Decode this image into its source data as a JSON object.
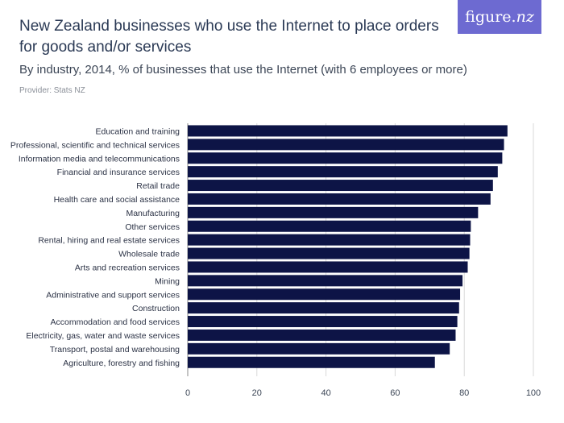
{
  "header": {
    "title": "New Zealand businesses who use the Internet to place orders for goods and/or services",
    "subtitle": "By industry, 2014, % of businesses that use the Internet (with 6 employees or more)",
    "provider": "Provider: Stats NZ",
    "logo_main": "figure.",
    "logo_suffix": "nz"
  },
  "colors": {
    "bar": "#0d1446",
    "brand": "#6d6ad1",
    "grid": "#d9d9d9"
  },
  "chart_data": {
    "type": "bar",
    "orientation": "horizontal",
    "categories": [
      "Education and training",
      "Professional, scientific and technical services",
      "Information media and telecommunications",
      "Financial and insurance services",
      "Retail trade",
      "Health care and social assistance",
      "Manufacturing",
      "Other services",
      "Rental, hiring and real estate services",
      "Wholesale trade",
      "Arts and recreation services",
      "Mining",
      "Administrative and support services",
      "Construction",
      "Accommodation and food services",
      "Electricity, gas, water and waste services",
      "Transport, postal and warehousing",
      "Agriculture, forestry and fishing"
    ],
    "values": [
      92.5,
      91.5,
      91,
      89.7,
      88.3,
      87.6,
      84,
      81.9,
      81.7,
      81.5,
      81,
      79.5,
      78.8,
      78.5,
      78,
      77.5,
      75.8,
      71.5
    ],
    "xlim": [
      0,
      100
    ],
    "xticks": [
      "0",
      "20",
      "40",
      "60",
      "80",
      "100"
    ],
    "grid": true
  }
}
